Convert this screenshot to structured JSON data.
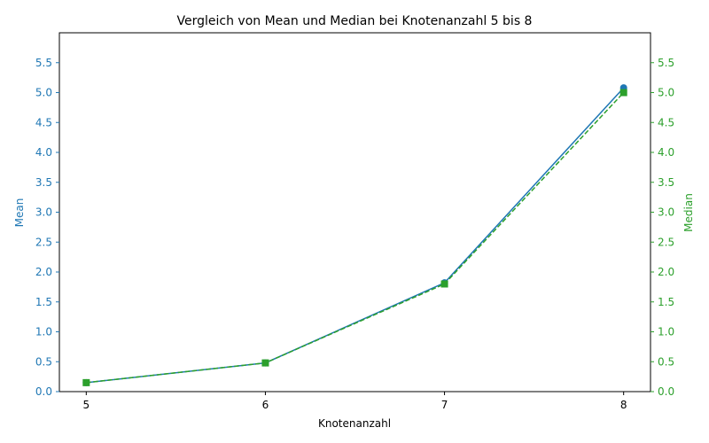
{
  "colors": {
    "mean": "#1f77b4",
    "median": "#2ca02c",
    "axis": "#000000",
    "background": "#ffffff"
  },
  "chart_data": {
    "type": "line",
    "title": "Vergleich von Mean und Median bei Knotenanzahl 5 bis 8",
    "xlabel": "Knotenanzahl",
    "ylabel_left": "Mean",
    "ylabel_right": "Median",
    "x": [
      5,
      6,
      7,
      8
    ],
    "xlim": [
      4.85,
      8.15
    ],
    "ylim": [
      0,
      6.0
    ],
    "yticks": [
      "0.0",
      "0.5",
      "1.0",
      "1.5",
      "2.0",
      "2.5",
      "3.0",
      "3.5",
      "4.0",
      "4.5",
      "5.0",
      "5.5"
    ],
    "xticks": [
      "5",
      "6",
      "7",
      "8"
    ],
    "grid": false,
    "series": [
      {
        "name": "Mean",
        "axis": "left",
        "values": [
          0.15,
          0.48,
          1.82,
          5.08
        ],
        "marker": "circle",
        "linestyle": "solid"
      },
      {
        "name": "Median",
        "axis": "right",
        "values": [
          0.15,
          0.48,
          1.8,
          5.0
        ],
        "marker": "square",
        "linestyle": "dashed"
      }
    ]
  }
}
